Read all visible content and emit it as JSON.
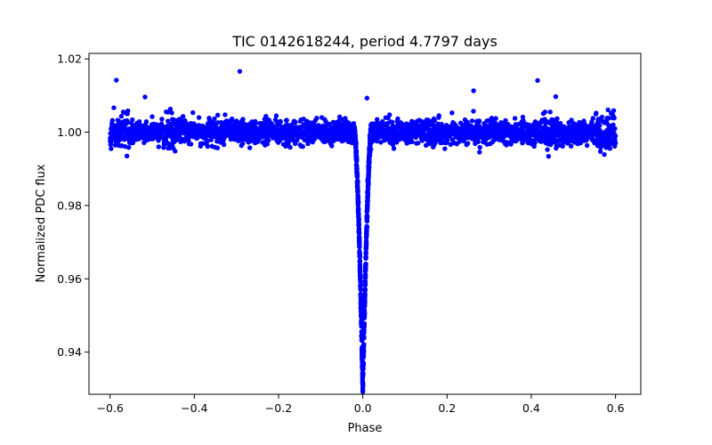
{
  "chart_data": {
    "type": "scatter",
    "title": "TIC 0142618244, period 4.7797 days",
    "xlabel": "Phase",
    "ylabel": "Normalized PDC flux",
    "xlim": [
      -0.65,
      0.66
    ],
    "ylim": [
      0.9285,
      1.0215
    ],
    "xticks": [
      -0.6,
      -0.4,
      -0.2,
      0.0,
      0.2,
      0.4,
      0.6
    ],
    "xtick_labels": [
      "−0.6",
      "−0.4",
      "−0.2",
      "0.0",
      "0.2",
      "0.4",
      "0.6"
    ],
    "yticks": [
      0.94,
      0.96,
      0.98,
      1.0,
      1.02
    ],
    "ytick_labels": [
      "0.94",
      "0.96",
      "0.98",
      "1.00",
      "1.02"
    ],
    "grid": false,
    "legend": "none",
    "series": [
      {
        "name": "PDC flux",
        "color": "#0000ff",
        "phase_range": [
          -0.6,
          0.6
        ],
        "baseline_flux": 1.0,
        "scatter_sigma": 0.0016,
        "eclipse_center_phase": 0.0,
        "eclipse_min_flux": 0.93,
        "outlier_points": [
          {
            "x": -0.585,
            "y": 1.0142
          },
          {
            "x": -0.292,
            "y": 1.0166
          },
          {
            "x": 0.415,
            "y": 1.0141
          },
          {
            "x": 0.263,
            "y": 1.0113
          },
          {
            "x": 0.458,
            "y": 1.0097
          },
          {
            "x": -0.517,
            "y": 1.0096
          },
          {
            "x": -0.56,
            "y": 0.9935
          },
          {
            "x": 0.01,
            "y": 1.0093
          }
        ]
      }
    ]
  }
}
